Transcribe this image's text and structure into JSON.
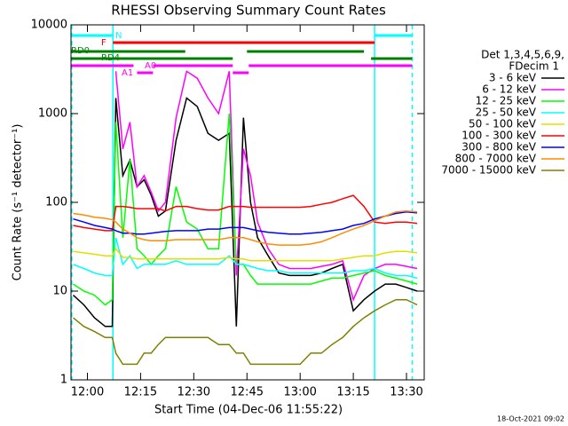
{
  "chart_data": {
    "type": "line",
    "title": "RHESSI Observing Summary Count Rates",
    "x_label": "Start Time (04-Dec-06 11:55:22)",
    "y_label": "Count Rate (s⁻¹ detector⁻¹)",
    "footer": "18-Oct-2021 09:02",
    "legend_title": [
      "Det 1,3,4,5,6,9,",
      "FDecim 1"
    ],
    "log_scale": true,
    "xlim": [
      715.37,
      815
    ],
    "xticks": [
      {
        "value": 720,
        "label": "12:00"
      },
      {
        "value": 735,
        "label": "12:15"
      },
      {
        "value": 750,
        "label": "12:30"
      },
      {
        "value": 765,
        "label": "12:45"
      },
      {
        "value": 780,
        "label": "13:00"
      },
      {
        "value": 795,
        "label": "13:15"
      },
      {
        "value": 810,
        "label": "13:30"
      }
    ],
    "ylim": [
      1,
      10000
    ],
    "yticks": [
      1,
      10,
      100,
      1000,
      10000
    ],
    "x": [
      716,
      719,
      722,
      725,
      727,
      728,
      730,
      732,
      734,
      736,
      738,
      740,
      742,
      745,
      748,
      751,
      754,
      757,
      760,
      762,
      764,
      766,
      768,
      771,
      774,
      777,
      780,
      783,
      786,
      789,
      792,
      795,
      798,
      801,
      804,
      807,
      810,
      813
    ],
    "series": [
      {
        "name": "3 - 6 keV",
        "color": "#000000",
        "values": [
          9,
          7,
          5,
          4,
          4,
          1500,
          200,
          300,
          150,
          180,
          120,
          70,
          80,
          500,
          1500,
          1200,
          600,
          500,
          600,
          4,
          900,
          100,
          40,
          25,
          16,
          15,
          15,
          15,
          16,
          18,
          20,
          6,
          8,
          10,
          12,
          12,
          11,
          10
        ]
      },
      {
        "name": "6 - 12 keV",
        "color": "#ff00ff",
        "values": [
          null,
          null,
          null,
          null,
          null,
          3000,
          400,
          800,
          150,
          200,
          130,
          80,
          100,
          900,
          3000,
          2500,
          1500,
          1000,
          3000,
          15,
          400,
          200,
          60,
          30,
          20,
          18,
          18,
          18,
          19,
          20,
          22,
          8,
          15,
          18,
          20,
          20,
          19,
          18
        ]
      },
      {
        "name": "12 - 25 keV",
        "color": "#00ff00",
        "values": [
          12,
          10,
          9,
          7,
          8,
          800,
          40,
          300,
          30,
          25,
          20,
          25,
          30,
          150,
          60,
          50,
          30,
          30,
          1000,
          20,
          20,
          15,
          12,
          12,
          12,
          12,
          12,
          12,
          13,
          14,
          14,
          15,
          16,
          17,
          15,
          14,
          13,
          12
        ]
      },
      {
        "name": "25 - 50 keV",
        "color": "#00ffff",
        "values": [
          20,
          18,
          16,
          15,
          15,
          40,
          20,
          25,
          18,
          20,
          20,
          20,
          20,
          22,
          20,
          20,
          20,
          20,
          25,
          20,
          20,
          19,
          18,
          17,
          17,
          16,
          16,
          16,
          16,
          16,
          16,
          17,
          17,
          18,
          16,
          15,
          15,
          14
        ]
      },
      {
        "name": "50 - 100 keV",
        "color": "#e0e000",
        "values": [
          28,
          27,
          26,
          25,
          25,
          30,
          24,
          24,
          23,
          23,
          23,
          23,
          23,
          23,
          23,
          23,
          23,
          23,
          24,
          23,
          23,
          22,
          22,
          22,
          22,
          22,
          22,
          22,
          22,
          22,
          23,
          24,
          25,
          25,
          27,
          28,
          28,
          27
        ]
      },
      {
        "name": "100 - 300 keV",
        "color": "#ff0000",
        "values": [
          55,
          52,
          50,
          48,
          48,
          90,
          90,
          88,
          85,
          85,
          85,
          85,
          80,
          90,
          90,
          85,
          82,
          82,
          90,
          90,
          90,
          88,
          88,
          88,
          88,
          88,
          88,
          90,
          95,
          100,
          110,
          120,
          90,
          60,
          58,
          60,
          60,
          58
        ]
      },
      {
        "name": "300 - 800 keV",
        "color": "#0000ff",
        "values": [
          65,
          60,
          55,
          52,
          50,
          48,
          45,
          45,
          44,
          44,
          45,
          46,
          47,
          48,
          48,
          48,
          50,
          50,
          52,
          52,
          52,
          50,
          48,
          46,
          45,
          44,
          44,
          45,
          46,
          48,
          50,
          55,
          58,
          65,
          70,
          75,
          78,
          76
        ]
      },
      {
        "name": "800 - 7000 keV",
        "color": "#ff8c00",
        "values": [
          75,
          72,
          68,
          66,
          64,
          60,
          50,
          45,
          40,
          38,
          37,
          37,
          37,
          38,
          38,
          38,
          38,
          38,
          40,
          40,
          40,
          38,
          36,
          34,
          33,
          33,
          33,
          34,
          36,
          40,
          45,
          50,
          55,
          62,
          70,
          78,
          80,
          78
        ]
      },
      {
        "name": "7000 - 15000 keV",
        "color": "#808000",
        "values": [
          5,
          4,
          3.5,
          3,
          3,
          2,
          1.5,
          1.5,
          1.5,
          2,
          2,
          2.5,
          3,
          3,
          3,
          3,
          3,
          2.5,
          2.5,
          2,
          2,
          1.5,
          1.5,
          1.5,
          1.5,
          1.5,
          1.5,
          2,
          2,
          2.5,
          3,
          4,
          5,
          6,
          7,
          8,
          8,
          7
        ]
      }
    ],
    "flags": [
      {
        "label": "N",
        "color": "#00ffff",
        "intervals": [
          [
            715.4,
            727.2
          ],
          [
            801,
            811.6
          ]
        ]
      },
      {
        "label": "F",
        "color": "#ff0000",
        "intervals": [
          [
            727.2,
            801
          ]
        ]
      },
      {
        "label": "RD0",
        "color": "#008000",
        "intervals": [
          [
            715.4,
            747.6
          ],
          [
            765,
            798
          ]
        ]
      },
      {
        "label": "RD4",
        "color": "#008000",
        "intervals": [
          [
            715.4,
            761
          ],
          [
            800,
            811.6
          ]
        ]
      },
      {
        "label": "A0",
        "color": "#ff00ff",
        "intervals": [
          [
            715.4,
            733
          ],
          [
            738.5,
            761
          ],
          [
            765.5,
            811.6
          ]
        ]
      },
      {
        "label": "A1",
        "color": "#ff00ff",
        "intervals": [
          [
            734,
            738.5
          ],
          [
            761,
            765.5
          ]
        ]
      }
    ],
    "night_lines": [
      {
        "x": 715.6,
        "style": "dashed"
      },
      {
        "x": 727.2,
        "style": "solid"
      },
      {
        "x": 801,
        "style": "solid"
      },
      {
        "x": 811.6,
        "style": "dashed"
      }
    ]
  }
}
